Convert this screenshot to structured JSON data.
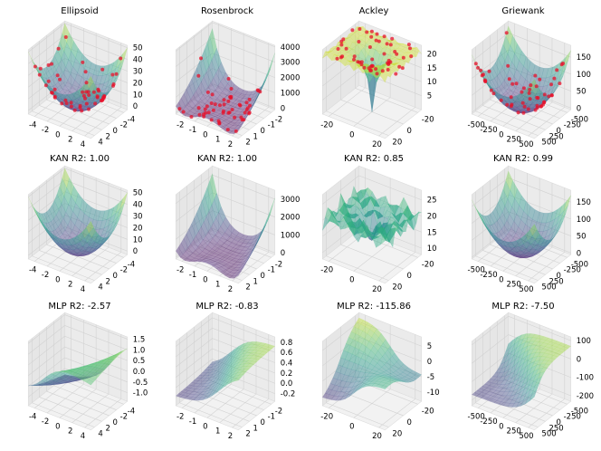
{
  "figure": {
    "columns": [
      "Ellipsoid",
      "Rosenbrock",
      "Ackley",
      "Griewank"
    ],
    "row_titles": [
      "",
      "KAN R2",
      "MLP R2"
    ]
  },
  "chart_data": [
    {
      "type": "surface",
      "row": "data",
      "title": "Ellipsoid",
      "func": "ellipsoid",
      "x_ticks": [
        "-4",
        "-2",
        "0",
        "2",
        "4"
      ],
      "y_ticks": [
        "-4",
        "-2",
        "0",
        "2",
        "4"
      ],
      "z_ticks": [
        "0",
        "10",
        "20",
        "30",
        "40",
        "50"
      ],
      "x_range": [
        -5,
        5
      ],
      "y_range": [
        -5,
        5
      ],
      "zlim": [
        -3,
        52
      ],
      "sample_points": true,
      "colormap": "viridis",
      "grid": true
    },
    {
      "type": "surface",
      "row": "data",
      "title": "Rosenbrock",
      "func": "rosenbrock",
      "x_ticks": [
        "-2",
        "-1",
        "0",
        "1",
        "2"
      ],
      "y_ticks": [
        "-2",
        "-1",
        "0",
        "1",
        "2"
      ],
      "z_ticks": [
        "0",
        "1000",
        "2000",
        "3000",
        "4000"
      ],
      "x_range": [
        -2,
        2
      ],
      "y_range": [
        -2,
        2
      ],
      "zlim": [
        -100,
        4100
      ],
      "sample_points": true,
      "colormap": "viridis",
      "grid": true
    },
    {
      "type": "surface",
      "row": "data",
      "title": "Ackley",
      "func": "ackley",
      "x_ticks": [
        "-20",
        "0",
        "20"
      ],
      "y_ticks": [
        "-20",
        "0",
        "20"
      ],
      "z_ticks": [
        "5",
        "10",
        "15",
        "20"
      ],
      "x_range": [
        -32,
        32
      ],
      "y_range": [
        -32,
        32
      ],
      "zlim": [
        0,
        23
      ],
      "sample_points": true,
      "colormap": "viridis",
      "grid": true
    },
    {
      "type": "surface",
      "row": "data",
      "title": "Griewank",
      "func": "griewank",
      "x_ticks": [
        "-500",
        "-250",
        "0",
        "250",
        "500"
      ],
      "y_ticks": [
        "-500",
        "-250",
        "0",
        "250",
        "500"
      ],
      "z_ticks": [
        "0",
        "50",
        "100",
        "150"
      ],
      "x_range": [
        -600,
        600
      ],
      "y_range": [
        -600,
        600
      ],
      "zlim": [
        -5,
        185
      ],
      "sample_points": true,
      "colormap": "viridis",
      "grid": true
    },
    {
      "type": "surface",
      "row": "kan",
      "title": "KAN R2: 1.00",
      "r2": 1.0,
      "func": "ellipsoid",
      "x_ticks": [
        "-4",
        "-2",
        "0",
        "2",
        "4"
      ],
      "y_ticks": [
        "-4",
        "-2",
        "0",
        "2",
        "4"
      ],
      "z_ticks": [
        "0",
        "10",
        "20",
        "30",
        "40",
        "50"
      ],
      "x_range": [
        -5,
        5
      ],
      "y_range": [
        -5,
        5
      ],
      "zlim": [
        -3,
        52
      ],
      "sample_points": false,
      "colormap": "viridis",
      "grid": true
    },
    {
      "type": "surface",
      "row": "kan",
      "title": "KAN R2: 1.00",
      "r2": 1.0,
      "func": "rosen_kan",
      "x_ticks": [
        "-2",
        "-1",
        "0",
        "1",
        "2"
      ],
      "y_ticks": [
        "-2",
        "-1",
        "0",
        "1",
        "2"
      ],
      "z_ticks": [
        "0",
        "1000",
        "2000",
        "3000"
      ],
      "x_range": [
        -2,
        2
      ],
      "y_range": [
        -2,
        2
      ],
      "zlim": [
        -100,
        3500
      ],
      "sample_points": false,
      "colormap": "viridis",
      "grid": true
    },
    {
      "type": "surface",
      "row": "kan",
      "title": "KAN R2: 0.85",
      "r2": 0.85,
      "func": "ackley_kan",
      "x_ticks": [
        "-20",
        "0",
        "20"
      ],
      "y_ticks": [
        "-20",
        "0",
        "20"
      ],
      "z_ticks": [
        "10",
        "15",
        "20",
        "25"
      ],
      "x_range": [
        -32,
        32
      ],
      "y_range": [
        -32,
        32
      ],
      "zlim": [
        8,
        28
      ],
      "sample_points": false,
      "colormap": "viridis",
      "grid": true
    },
    {
      "type": "surface",
      "row": "kan",
      "title": "KAN R2: 0.99",
      "r2": 0.99,
      "func": "griewank",
      "x_ticks": [
        "-500",
        "-250",
        "0",
        "250",
        "500"
      ],
      "y_ticks": [
        "-500",
        "-250",
        "0",
        "250",
        "500"
      ],
      "z_ticks": [
        "0",
        "50",
        "100",
        "150"
      ],
      "x_range": [
        -600,
        600
      ],
      "y_range": [
        -600,
        600
      ],
      "zlim": [
        -5,
        185
      ],
      "sample_points": false,
      "colormap": "viridis",
      "grid": true
    },
    {
      "type": "surface",
      "row": "mlp",
      "title": "MLP R2: -2.57",
      "r2": -2.57,
      "func": "mlp1",
      "x_ticks": [
        "-4",
        "-2",
        "0",
        "2",
        "4"
      ],
      "y_ticks": [
        "-4",
        "-2",
        "0",
        "2",
        "4"
      ],
      "z_ticks": [
        "-1.0",
        "-0.5",
        "0.0",
        "0.5",
        "1.0",
        "1.5"
      ],
      "x_range": [
        -5,
        5
      ],
      "y_range": [
        -5,
        5
      ],
      "zlim": [
        -1.4,
        1.6
      ],
      "sample_points": false,
      "colormap": "viridis",
      "grid": true
    },
    {
      "type": "surface",
      "row": "mlp",
      "title": "MLP R2: -0.83",
      "r2": -0.83,
      "func": "mlp2",
      "x_ticks": [
        "-2",
        "-1",
        "0",
        "1",
        "2"
      ],
      "y_ticks": [
        "-2",
        "-1",
        "0",
        "1",
        "2"
      ],
      "z_ticks": [
        "-0.2",
        "0.0",
        "0.2",
        "0.4",
        "0.6",
        "0.8"
      ],
      "x_range": [
        -2,
        2
      ],
      "y_range": [
        -2,
        2
      ],
      "zlim": [
        -0.35,
        0.9
      ],
      "sample_points": false,
      "colormap": "viridis",
      "grid": true
    },
    {
      "type": "surface",
      "row": "mlp",
      "title": "MLP R2: -115.86",
      "r2": -115.86,
      "func": "mlp3",
      "x_ticks": [
        "-20",
        "0",
        "20"
      ],
      "y_ticks": [
        "-20",
        "0",
        "20"
      ],
      "z_ticks": [
        "-10",
        "-5",
        "0",
        "5"
      ],
      "x_range": [
        -32,
        32
      ],
      "y_range": [
        -32,
        32
      ],
      "zlim": [
        -13,
        8
      ],
      "sample_points": false,
      "colormap": "viridis",
      "grid": true
    },
    {
      "type": "surface",
      "row": "mlp",
      "title": "MLP R2: -7.50",
      "r2": -7.5,
      "func": "mlp4",
      "x_ticks": [
        "-500",
        "-250",
        "0",
        "250",
        "500"
      ],
      "y_ticks": [
        "-500",
        "-250",
        "0",
        "250",
        "500"
      ],
      "z_ticks": [
        "-200",
        "-100",
        "0",
        "100"
      ],
      "x_range": [
        -600,
        600
      ],
      "y_range": [
        -600,
        600
      ],
      "zlim": [
        -230,
        120
      ],
      "sample_points": false,
      "colormap": "viridis",
      "grid": true
    }
  ]
}
